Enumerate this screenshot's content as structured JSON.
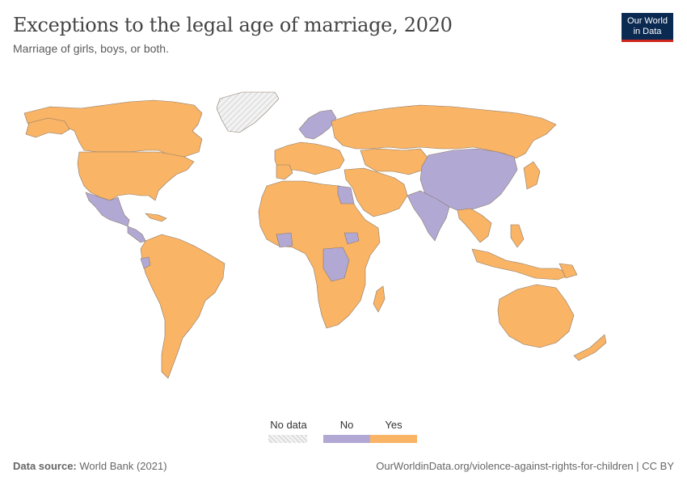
{
  "header": {
    "title": "Exceptions to the legal age of marriage, 2020",
    "subtitle": "Marriage of girls, boys, or both."
  },
  "logo": {
    "line1": "Our World",
    "line2": "in Data"
  },
  "legend": {
    "no_data": "No data",
    "no": "No",
    "yes": "Yes"
  },
  "colors": {
    "yes": "#f9b466",
    "no": "#b2a8d4",
    "no_data": "#e8e8e8",
    "border": "#8a7a6a"
  },
  "footer": {
    "source_label": "Data source:",
    "source_value": "World Bank (2021)",
    "url": "OurWorldinData.org/violence-against-rights-for-children | CC BY"
  }
}
